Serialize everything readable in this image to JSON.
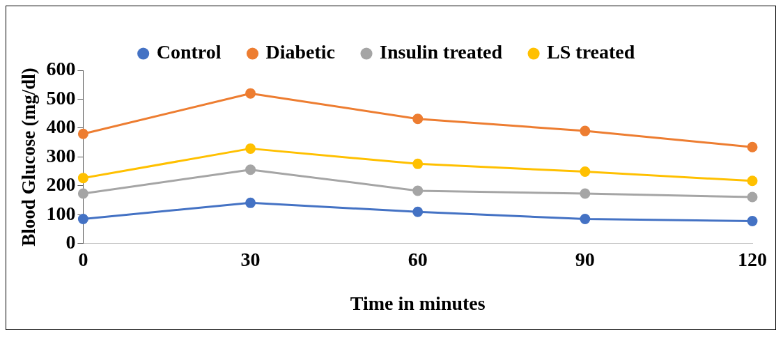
{
  "chart_data": {
    "type": "line",
    "xlabel": "Time in minutes",
    "ylabel": "Blood Glucose (mg/dl)",
    "categories": [
      "0",
      "30",
      "60",
      "90",
      "120"
    ],
    "ylim": [
      0,
      600
    ],
    "yticks": [
      0,
      100,
      200,
      300,
      400,
      500,
      600
    ],
    "grid": false,
    "legend": "top",
    "marker": "circle",
    "line_style": "solid",
    "series": [
      {
        "name": "Control",
        "color": "#4472c4",
        "values": [
          85,
          141,
          110,
          85,
          78
        ]
      },
      {
        "name": "Diabetic",
        "color": "#ed7d31",
        "values": [
          380,
          520,
          432,
          390,
          334
        ]
      },
      {
        "name": "Insulin treated",
        "color": "#a5a5a5",
        "values": [
          173,
          256,
          183,
          173,
          161
        ]
      },
      {
        "name": "LS treated",
        "color": "#ffc000",
        "values": [
          227,
          329,
          276,
          249,
          217
        ]
      }
    ]
  }
}
